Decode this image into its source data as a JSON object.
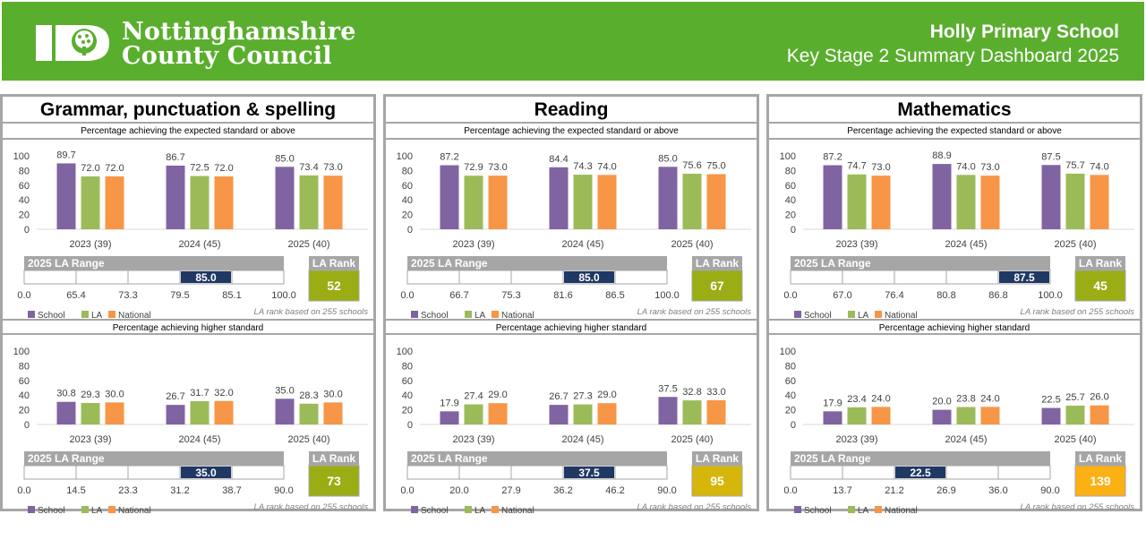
{
  "header": {
    "org_line1": "Nottinghamshire",
    "org_line2": "County Council",
    "school_name": "Holly Primary School",
    "dashboard_title": "Key Stage 2 Summary Dashboard 2025"
  },
  "colors": {
    "school": "#8064a2",
    "la": "#9bbb59",
    "national": "#f79646",
    "banner": "#5aae2e",
    "range_marker": "#1f3864",
    "rank_green": "#9aad14",
    "rank_yellow": "#d6b60b",
    "rank_orange": "#fbb014"
  },
  "legend": [
    "School",
    "LA",
    "National"
  ],
  "labels": {
    "expected_title": "Percentage achieving the expected standard or above",
    "higher_title": "Percentage achieving higher standard",
    "range_title": "2025 LA Range",
    "rank_title": "LA Rank",
    "rank_note": "LA rank based on 255 schools"
  },
  "chart_data": [
    {
      "type": "bar",
      "subject": "Grammar, punctuation & spelling",
      "categories": [
        "2023 (39)",
        "2024 (45)",
        "2025 (40)"
      ],
      "yticks": [
        "0",
        "20",
        "40",
        "60",
        "80",
        "100"
      ],
      "ylim": [
        0,
        100
      ],
      "expected": {
        "series": [
          {
            "name": "School",
            "values": [
              89.7,
              86.7,
              85.0
            ]
          },
          {
            "name": "LA",
            "values": [
              72.0,
              72.5,
              73.4
            ]
          },
          {
            "name": "National",
            "values": [
              72.0,
              72.0,
              73.0
            ]
          }
        ],
        "range": {
          "ticks": [
            "0.0",
            "65.4",
            "73.3",
            "79.5",
            "85.1",
            "100.0"
          ],
          "school_value": "85.0",
          "school_band": 4
        },
        "rank": {
          "value": "52",
          "color": "#9aad14"
        }
      },
      "higher": {
        "series": [
          {
            "name": "School",
            "values": [
              30.8,
              26.7,
              35.0
            ]
          },
          {
            "name": "LA",
            "values": [
              29.3,
              31.7,
              28.3
            ]
          },
          {
            "name": "National",
            "values": [
              30.0,
              32.0,
              30.0
            ]
          }
        ],
        "range": {
          "ticks": [
            "0.0",
            "14.5",
            "23.3",
            "31.2",
            "38.7",
            "90.0"
          ],
          "school_value": "35.0",
          "school_band": 4
        },
        "rank": {
          "value": "73",
          "color": "#9aad14"
        }
      }
    },
    {
      "type": "bar",
      "subject": "Reading",
      "categories": [
        "2023 (39)",
        "2024 (45)",
        "2025 (40)"
      ],
      "yticks": [
        "0",
        "20",
        "40",
        "60",
        "80",
        "100"
      ],
      "ylim": [
        0,
        100
      ],
      "expected": {
        "series": [
          {
            "name": "School",
            "values": [
              87.2,
              84.4,
              85.0
            ]
          },
          {
            "name": "LA",
            "values": [
              72.9,
              74.3,
              75.6
            ]
          },
          {
            "name": "National",
            "values": [
              73.0,
              74.0,
              75.0
            ]
          }
        ],
        "range": {
          "ticks": [
            "0.0",
            "66.7",
            "75.3",
            "81.6",
            "86.5",
            "100.0"
          ],
          "school_value": "85.0",
          "school_band": 4
        },
        "rank": {
          "value": "67",
          "color": "#9aad14"
        }
      },
      "higher": {
        "series": [
          {
            "name": "School",
            "values": [
              17.9,
              26.7,
              37.5
            ]
          },
          {
            "name": "LA",
            "values": [
              27.4,
              27.3,
              32.8
            ]
          },
          {
            "name": "National",
            "values": [
              29.0,
              29.0,
              33.0
            ]
          }
        ],
        "range": {
          "ticks": [
            "0.0",
            "20.0",
            "27.9",
            "36.2",
            "46.2",
            "90.0"
          ],
          "school_value": "37.5",
          "school_band": 4
        },
        "rank": {
          "value": "95",
          "color": "#d6b60b"
        }
      }
    },
    {
      "type": "bar",
      "subject": "Mathematics",
      "categories": [
        "2023 (39)",
        "2024 (45)",
        "2025 (40)"
      ],
      "yticks": [
        "0",
        "20",
        "40",
        "60",
        "80",
        "100"
      ],
      "ylim": [
        0,
        100
      ],
      "expected": {
        "series": [
          {
            "name": "School",
            "values": [
              87.2,
              88.9,
              87.5
            ]
          },
          {
            "name": "LA",
            "values": [
              74.7,
              74.0,
              75.7
            ]
          },
          {
            "name": "National",
            "values": [
              73.0,
              73.0,
              74.0
            ]
          }
        ],
        "range": {
          "ticks": [
            "0.0",
            "67.0",
            "76.4",
            "80.8",
            "86.8",
            "100.0"
          ],
          "school_value": "87.5",
          "school_band": 5
        },
        "rank": {
          "value": "45",
          "color": "#9aad14"
        }
      },
      "higher": {
        "series": [
          {
            "name": "School",
            "values": [
              17.9,
              20.0,
              22.5
            ]
          },
          {
            "name": "LA",
            "values": [
              23.4,
              23.8,
              25.7
            ]
          },
          {
            "name": "National",
            "values": [
              24.0,
              24.0,
              26.0
            ]
          }
        ],
        "range": {
          "ticks": [
            "0.0",
            "13.7",
            "21.2",
            "26.9",
            "36.0",
            "90.0"
          ],
          "school_value": "22.5",
          "school_band": 3
        },
        "rank": {
          "value": "139",
          "color": "#fbb014"
        }
      }
    }
  ]
}
